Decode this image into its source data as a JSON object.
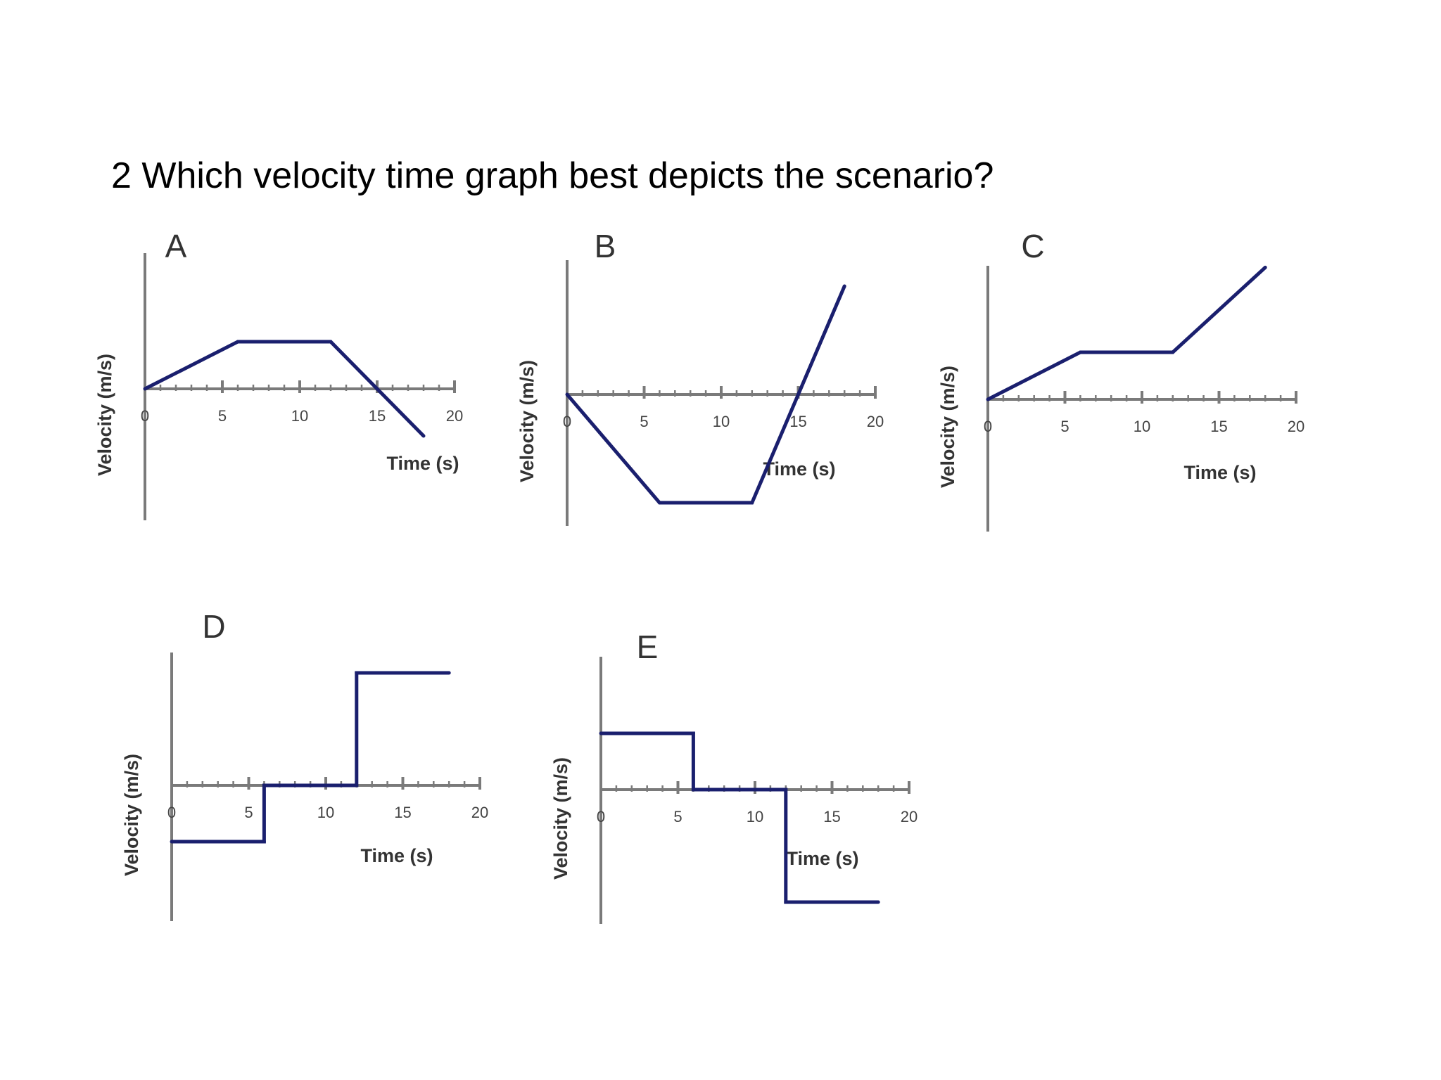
{
  "question": "2 Which velocity time graph best depicts the scenario?",
  "colors": {
    "line": "#1a1f6e",
    "axis": "#7a7a7a",
    "text": "#333333"
  },
  "chart_data": [
    {
      "id": "A",
      "type": "line",
      "title": "A",
      "xlabel": "Time (s)",
      "ylabel": "Velocity (m/s)",
      "xticks": [
        "0",
        "5",
        "10",
        "15",
        "20"
      ],
      "xlim": [
        0,
        20
      ],
      "ylim": [
        -1.5,
        2.4
      ],
      "x": [
        0,
        6,
        12,
        18
      ],
      "y": [
        0,
        1,
        1,
        -1
      ]
    },
    {
      "id": "B",
      "type": "line",
      "title": "B",
      "xlabel": "Time (s)",
      "ylabel": "Velocity (m/s)",
      "xticks": [
        "0",
        "5",
        "10",
        "15",
        "20"
      ],
      "xlim": [
        0,
        20
      ],
      "ylim": [
        -1.2,
        1.2
      ],
      "x": [
        0,
        6,
        12,
        18
      ],
      "y": [
        0,
        -1,
        -1,
        1
      ]
    },
    {
      "id": "C",
      "type": "line",
      "title": "C",
      "xlabel": "Time (s)",
      "ylabel": "Velocity (m/s)",
      "xticks": [
        "0",
        "5",
        "10",
        "15",
        "20"
      ],
      "xlim": [
        0,
        20
      ],
      "ylim": [
        -2.5,
        2.5
      ],
      "x": [
        0,
        6,
        12,
        18
      ],
      "y": [
        0,
        1,
        1,
        2.8
      ]
    },
    {
      "id": "D",
      "type": "line",
      "title": "D",
      "xlabel": "Time (s)",
      "ylabel": "Velocity (m/s)",
      "xticks": [
        "0",
        "5",
        "10",
        "15",
        "20"
      ],
      "xlim": [
        0,
        20
      ],
      "ylim": [
        -2.5,
        2.5
      ],
      "x": [
        0,
        6,
        6,
        12,
        12,
        18
      ],
      "y": [
        -1,
        -1,
        0,
        0,
        2,
        2
      ]
    },
    {
      "id": "E",
      "type": "line",
      "title": "E",
      "xlabel": "Time (s)",
      "ylabel": "Velocity (m/s)",
      "xticks": [
        "0",
        "5",
        "10",
        "15",
        "20"
      ],
      "xlim": [
        0,
        20
      ],
      "ylim": [
        -2.5,
        2.5
      ],
      "x": [
        0,
        6,
        6,
        12,
        12,
        18
      ],
      "y": [
        1,
        1,
        0,
        0,
        -2,
        -2
      ]
    }
  ]
}
